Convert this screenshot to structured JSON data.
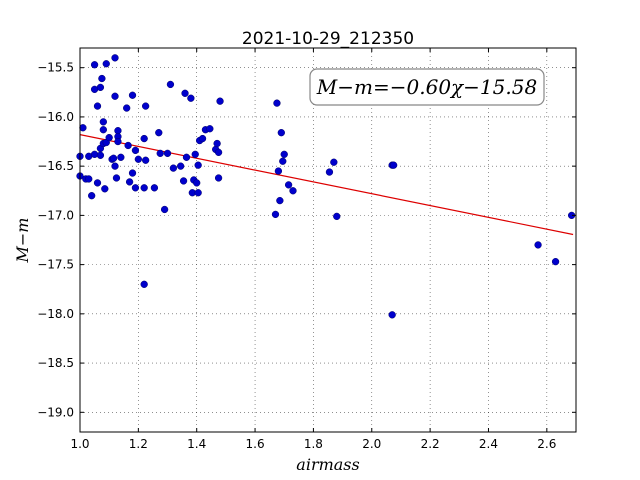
{
  "chart_data": {
    "type": "scatter",
    "title": "2021-10-29_212350",
    "xlabel": "airmass",
    "ylabel": "M−m",
    "xlim": [
      1.0,
      2.7
    ],
    "ylim": [
      -19.2,
      -15.3
    ],
    "y_inverted": true,
    "grid": true,
    "xticks": [
      1.0,
      1.2,
      1.4,
      1.6,
      1.8,
      2.0,
      2.2,
      2.4,
      2.6
    ],
    "xtick_labels": [
      "1.0",
      "1.2",
      "1.4",
      "1.6",
      "1.8",
      "2.0",
      "2.2",
      "2.4",
      "2.6"
    ],
    "yticks": [
      -15.5,
      -16.0,
      -16.5,
      -17.0,
      -17.5,
      -18.0,
      -18.5,
      -19.0
    ],
    "ytick_labels": [
      "−15.5",
      "−16.0",
      "−16.5",
      "−17.0",
      "−17.5",
      "−18.0",
      "−18.5",
      "−19.0"
    ],
    "marker_color": "#0000cc",
    "fit_color": "#dd0000",
    "annotation": "M−m=−0.60χ−15.58",
    "fit": {
      "slope": -0.6,
      "intercept": -15.58,
      "x_range": [
        1.0,
        2.69
      ]
    },
    "points": [
      [
        1.0,
        -16.4
      ],
      [
        1.0,
        -16.6
      ],
      [
        1.01,
        -16.11
      ],
      [
        1.02,
        -16.63
      ],
      [
        1.03,
        -16.63
      ],
      [
        1.03,
        -16.4
      ],
      [
        1.04,
        -16.8
      ],
      [
        1.05,
        -15.47
      ],
      [
        1.05,
        -15.72
      ],
      [
        1.05,
        -16.38
      ],
      [
        1.06,
        -15.89
      ],
      [
        1.06,
        -16.67
      ],
      [
        1.07,
        -15.7
      ],
      [
        1.07,
        -16.32
      ],
      [
        1.07,
        -16.39
      ],
      [
        1.075,
        -15.61
      ],
      [
        1.08,
        -16.05
      ],
      [
        1.08,
        -16.13
      ],
      [
        1.08,
        -16.27
      ],
      [
        1.085,
        -16.73
      ],
      [
        1.09,
        -15.46
      ],
      [
        1.09,
        -16.26
      ],
      [
        1.1,
        -16.21
      ],
      [
        1.11,
        -16.43
      ],
      [
        1.115,
        -16.42
      ],
      [
        1.12,
        -15.4
      ],
      [
        1.12,
        -15.79
      ],
      [
        1.12,
        -16.5
      ],
      [
        1.125,
        -16.62
      ],
      [
        1.13,
        -16.14
      ],
      [
        1.13,
        -16.2
      ],
      [
        1.13,
        -16.25
      ],
      [
        1.14,
        -16.41
      ],
      [
        1.16,
        -15.91
      ],
      [
        1.165,
        -16.29
      ],
      [
        1.17,
        -16.66
      ],
      [
        1.18,
        -15.78
      ],
      [
        1.18,
        -16.57
      ],
      [
        1.19,
        -16.34
      ],
      [
        1.19,
        -16.72
      ],
      [
        1.2,
        -16.43
      ],
      [
        1.22,
        -16.22
      ],
      [
        1.22,
        -16.72
      ],
      [
        1.22,
        -17.7
      ],
      [
        1.225,
        -16.44
      ],
      [
        1.225,
        -15.89
      ],
      [
        1.255,
        -16.72
      ],
      [
        1.27,
        -16.16
      ],
      [
        1.275,
        -16.37
      ],
      [
        1.29,
        -16.94
      ],
      [
        1.3,
        -16.37
      ],
      [
        1.31,
        -15.67
      ],
      [
        1.32,
        -16.52
      ],
      [
        1.345,
        -16.5
      ],
      [
        1.355,
        -16.65
      ],
      [
        1.36,
        -15.76
      ],
      [
        1.365,
        -16.41
      ],
      [
        1.38,
        -15.81
      ],
      [
        1.385,
        -16.77
      ],
      [
        1.39,
        -16.64
      ],
      [
        1.395,
        -16.38
      ],
      [
        1.4,
        -16.67
      ],
      [
        1.405,
        -16.49
      ],
      [
        1.405,
        -16.77
      ],
      [
        1.41,
        -16.24
      ],
      [
        1.42,
        -16.22
      ],
      [
        1.43,
        -16.13
      ],
      [
        1.445,
        -16.12
      ],
      [
        1.465,
        -16.33
      ],
      [
        1.47,
        -16.27
      ],
      [
        1.475,
        -16.36
      ],
      [
        1.475,
        -16.62
      ],
      [
        1.48,
        -15.84
      ],
      [
        1.67,
        -16.99
      ],
      [
        1.675,
        -15.86
      ],
      [
        1.68,
        -16.55
      ],
      [
        1.685,
        -16.85
      ],
      [
        1.69,
        -16.16
      ],
      [
        1.695,
        -16.45
      ],
      [
        1.7,
        -16.38
      ],
      [
        1.715,
        -16.69
      ],
      [
        1.73,
        -16.75
      ],
      [
        1.855,
        -16.56
      ],
      [
        1.87,
        -16.46
      ],
      [
        1.88,
        -17.01
      ],
      [
        2.07,
        -16.49
      ],
      [
        2.075,
        -16.49
      ],
      [
        2.07,
        -18.01
      ],
      [
        2.57,
        -17.3
      ],
      [
        2.63,
        -17.47
      ],
      [
        2.685,
        -17.0
      ]
    ]
  }
}
